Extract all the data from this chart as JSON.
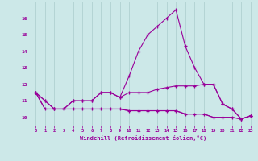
{
  "xlabel": "Windchill (Refroidissement éolien,°C)",
  "background_color": "#cce8e8",
  "grid_color": "#aacccc",
  "line_color": "#990099",
  "x_hours": [
    0,
    1,
    2,
    3,
    4,
    5,
    6,
    7,
    8,
    9,
    10,
    11,
    12,
    13,
    14,
    15,
    16,
    17,
    18,
    19,
    20,
    21,
    22,
    23
  ],
  "line1": [
    11.5,
    11.0,
    10.5,
    10.5,
    11.0,
    11.0,
    11.0,
    11.5,
    11.5,
    11.2,
    12.5,
    14.0,
    15.0,
    15.5,
    16.0,
    16.5,
    14.3,
    13.0,
    12.0,
    12.0,
    10.8,
    10.5,
    9.9,
    10.1
  ],
  "line2": [
    11.5,
    11.0,
    10.5,
    10.5,
    11.0,
    11.0,
    11.0,
    11.5,
    11.5,
    11.2,
    11.5,
    11.5,
    11.5,
    11.7,
    11.8,
    11.9,
    11.9,
    11.9,
    12.0,
    12.0,
    10.8,
    10.5,
    9.9,
    10.1
  ],
  "line3": [
    11.5,
    10.5,
    10.5,
    10.5,
    10.5,
    10.5,
    10.5,
    10.5,
    10.5,
    10.5,
    10.4,
    10.4,
    10.4,
    10.4,
    10.4,
    10.4,
    10.2,
    10.2,
    10.2,
    10.0,
    10.0,
    10.0,
    9.9,
    10.1
  ],
  "line4": [
    11.5,
    10.5,
    10.5,
    10.5,
    10.5,
    10.5,
    10.5,
    10.5,
    10.5,
    10.5,
    10.4,
    10.4,
    10.4,
    10.4,
    10.4,
    10.4,
    10.2,
    10.2,
    10.2,
    10.0,
    10.0,
    10.0,
    9.9,
    10.1
  ],
  "ylim": [
    9.5,
    17.0
  ],
  "yticks": [
    10,
    11,
    12,
    13,
    14,
    15,
    16
  ],
  "xlim": [
    -0.5,
    23.5
  ]
}
